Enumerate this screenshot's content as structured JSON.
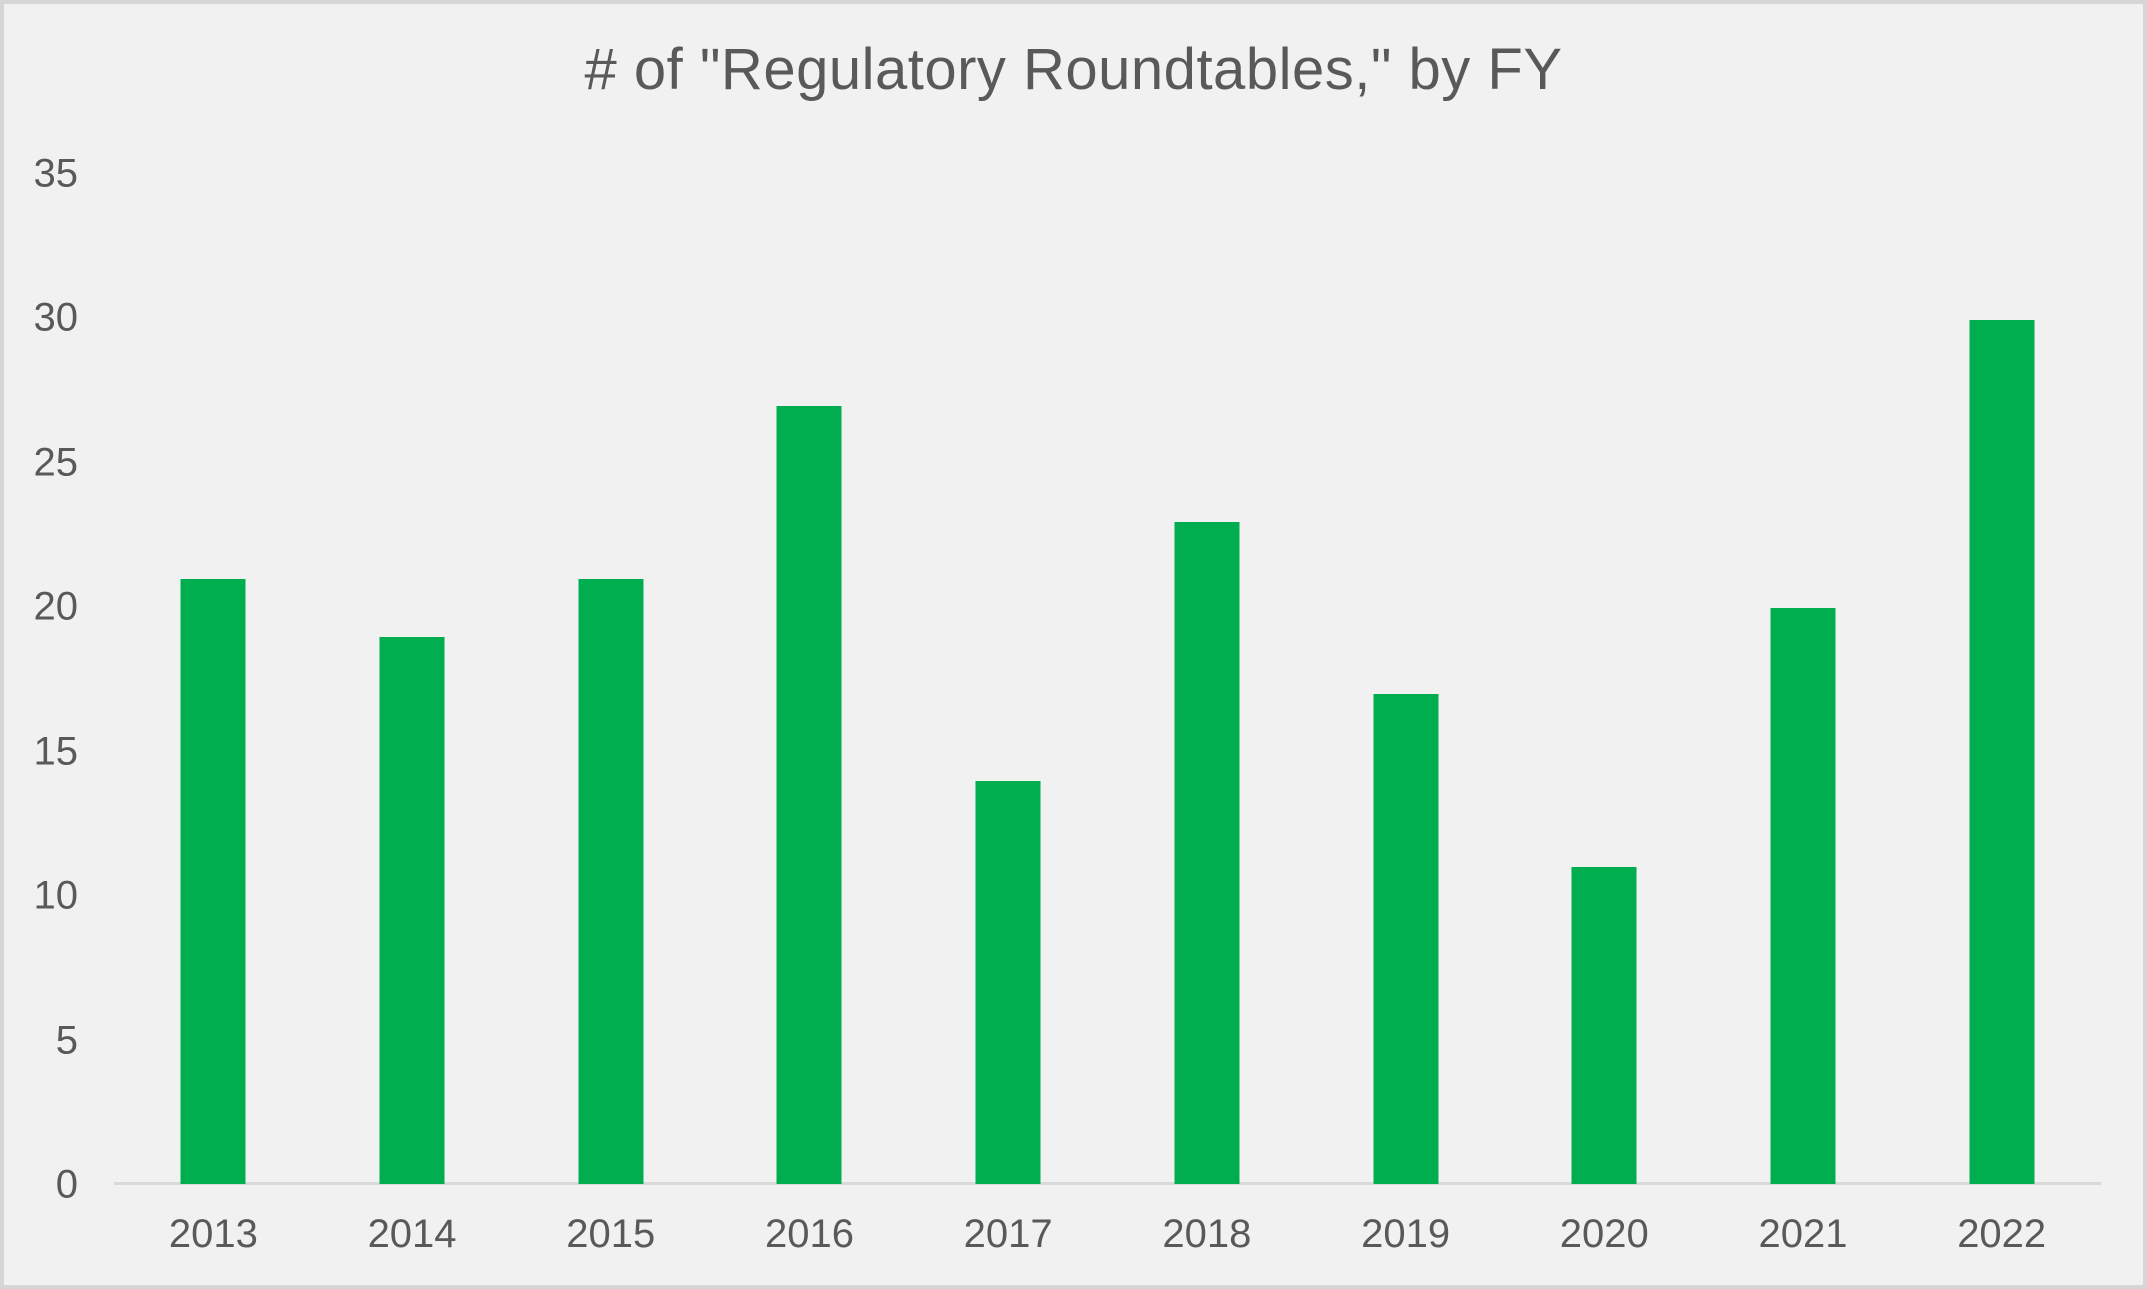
{
  "chart_data": {
    "type": "bar",
    "title": "# of \"Regulatory Roundtables,\" by FY",
    "categories": [
      "2013",
      "2014",
      "2015",
      "2016",
      "2017",
      "2018",
      "2019",
      "2020",
      "2021",
      "2022"
    ],
    "values": [
      21,
      19,
      21,
      27,
      14,
      23,
      17,
      11,
      20,
      30
    ],
    "xlabel": "",
    "ylabel": "",
    "ylim": [
      0,
      35
    ],
    "yticks": [
      0,
      5,
      10,
      15,
      20,
      25,
      30,
      35
    ],
    "grid": false,
    "legend": "none"
  },
  "colors": {
    "background": "#f1f1f1",
    "frame_border": "#d6d6d6",
    "bar": "#00ae50",
    "axis_line": "#d9d9d9",
    "text": "#595959"
  }
}
